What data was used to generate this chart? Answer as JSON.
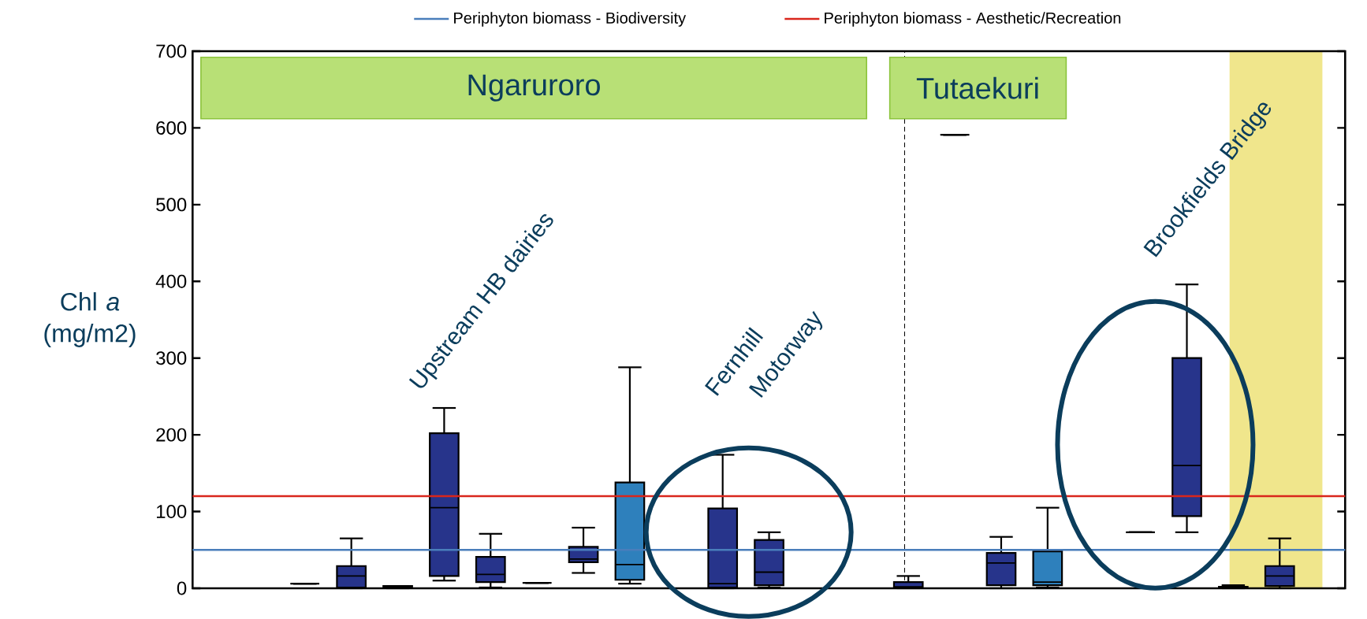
{
  "chart_data": {
    "type": "box",
    "ylabel": "Chl *a* (mg/m2)",
    "categories": [
      null,
      null,
      null,
      null,
      null,
      null,
      null,
      null,
      null,
      null,
      null,
      null,
      null,
      null,
      null,
      null,
      null,
      null,
      null,
      null,
      null,
      null,
      null,
      null,
      null
    ],
    "boxes": [
      null,
      null,
      {
        "low": 6,
        "q1": 6,
        "median": 6,
        "q3": 6,
        "high": 6
      },
      {
        "low": 0,
        "q1": 1,
        "median": 16,
        "q3": 29,
        "high": 65
      },
      {
        "low": 0,
        "q1": 0,
        "median": 1,
        "q3": 3,
        "high": 3
      },
      {
        "low": 10,
        "q1": 16,
        "median": 105,
        "q3": 202,
        "high": 235
      },
      {
        "low": 1,
        "q1": 8,
        "median": 18,
        "q3": 41,
        "high": 71
      },
      {
        "low": 7,
        "q1": 7,
        "median": 7,
        "q3": 7,
        "high": 7
      },
      {
        "low": 20,
        "q1": 34,
        "median": 38,
        "q3": 54,
        "high": 79
      },
      {
        "low": 6,
        "q1": 11,
        "median": 31,
        "q3": 138,
        "high": 288
      },
      null,
      {
        "low": 0,
        "q1": 1,
        "median": 6,
        "q3": 104,
        "high": 174
      },
      {
        "low": 1,
        "q1": 4,
        "median": 21,
        "q3": 63,
        "high": 73
      },
      null,
      null,
      {
        "low": 0,
        "q1": 0,
        "median": 2,
        "q3": 8,
        "high": 16
      },
      {
        "low": 591,
        "q1": 591,
        "median": 591,
        "q3": 591,
        "high": 591
      },
      {
        "low": 0,
        "q1": 4,
        "median": 33,
        "q3": 46,
        "high": 67
      },
      {
        "low": 1,
        "q1": 4,
        "median": 8,
        "q3": 48,
        "high": 105
      },
      null,
      {
        "low": 73,
        "q1": 73,
        "median": 73,
        "q3": 73,
        "high": 73
      },
      {
        "low": 73,
        "q1": 94,
        "median": 160,
        "q3": 300,
        "high": 396
      },
      {
        "low": 0,
        "q1": 0,
        "median": 1,
        "q3": 2,
        "high": 4
      },
      {
        "low": 0,
        "q1": 3,
        "median": 16,
        "q3": 29,
        "high": 65
      },
      null
    ],
    "colors": [
      null,
      null,
      null,
      "#27348b",
      "#27348b",
      "#27348b",
      "#27348b",
      null,
      "#27348b",
      "#2e80bc",
      null,
      "#27348b",
      "#27348b",
      null,
      null,
      "#27348b",
      null,
      "#27348b",
      "#2e80bc",
      null,
      null,
      "#27348b",
      "#27348b",
      "#27348b",
      null
    ],
    "ylim": [
      0,
      700
    ],
    "yticks": [
      0,
      100,
      200,
      300,
      400,
      500,
      600,
      700
    ],
    "tick_labels": "y",
    "legend": "top",
    "ref_lines": [
      {
        "axis": "y",
        "value": 50,
        "label": "Periphyton biomass - Biodiversity",
        "color": "#4a7ebb"
      },
      {
        "axis": "y",
        "value": 120,
        "label": "Periphyton biomass - Aesthetic/Recreation",
        "color": "#d9261c"
      }
    ],
    "annotations": [
      "Ngaruroro",
      "Tutaekuri",
      "Upstream HB dairies",
      "Fernhill",
      "Motorway",
      "Brookfields Bridge"
    ]
  }
}
